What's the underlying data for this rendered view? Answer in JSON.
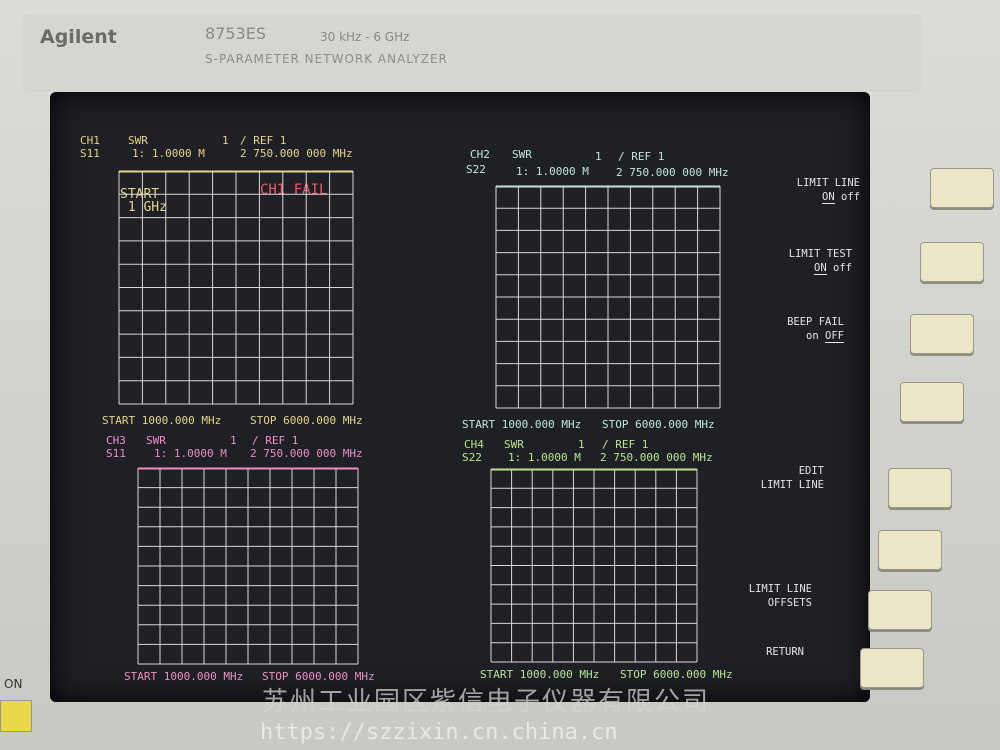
{
  "header": {
    "brand": "Agilent",
    "model": "8753ES",
    "range": "30 kHz - 6 GHz",
    "description": "S-PARAMETER NETWORK ANALYZER"
  },
  "channels": [
    {
      "id": "CH1",
      "param": "S11",
      "format": "SWR",
      "scale": "1",
      "ref": "/ REF 1",
      "marker1": "1: 1.0000 M",
      "marker2": "2 750.000 000 MHz",
      "start": "START 1000.000 MHz",
      "stop": "STOP 6000.000 MHz",
      "status": "CH1 FAIL",
      "marker_note": "START\n 1 GHz",
      "color": "#e6d38a"
    },
    {
      "id": "CH2",
      "param": "S22",
      "format": "SWR",
      "scale": "1",
      "ref": "/ REF 1",
      "marker1": "1: 1.0000 M",
      "marker2": "2 750.000 000 MHz",
      "start": "START 1000.000 MHz",
      "stop": "STOP 6000.000 MHz",
      "color": "#bfe6de"
    },
    {
      "id": "CH3",
      "param": "S11",
      "format": "SWR",
      "scale": "1",
      "ref": "/ REF 1",
      "marker1": "1: 1.0000 M",
      "marker2": "2 750.000 000 MHz",
      "start": "START 1000.000 MHz",
      "stop": "STOP 6000.000 MHz",
      "color": "#ec8fc2"
    },
    {
      "id": "CH4",
      "param": "S22",
      "format": "SWR",
      "scale": "1",
      "ref": "/ REF 1",
      "marker1": "1: 1.0000 M",
      "marker2": "2 750.000 000 MHz",
      "start": "START 1000.000 MHz",
      "stop": "STOP 6000.000 MHz",
      "color": "#b6e48e"
    }
  ],
  "softkeys": [
    {
      "label": "LIMIT LINE",
      "on": "ON",
      "off": "off",
      "selected": "on"
    },
    {
      "label": "LIMIT TEST",
      "on": "ON",
      "off": "off",
      "selected": "on"
    },
    {
      "label": "BEEP FAIL",
      "on": "on",
      "off": "OFF",
      "selected": "off"
    },
    {
      "label": ""
    },
    {
      "label": "EDIT\nLIMIT LINE"
    },
    {
      "label": ""
    },
    {
      "label": "LIMIT LINE\nOFFSETS"
    },
    {
      "label": "RETURN"
    }
  ],
  "power": {
    "label": "ON"
  },
  "watermark": {
    "company": "苏州工业园区紫信电子仪器有限公司",
    "url": "https://szzixin.cn.china.cn"
  }
}
